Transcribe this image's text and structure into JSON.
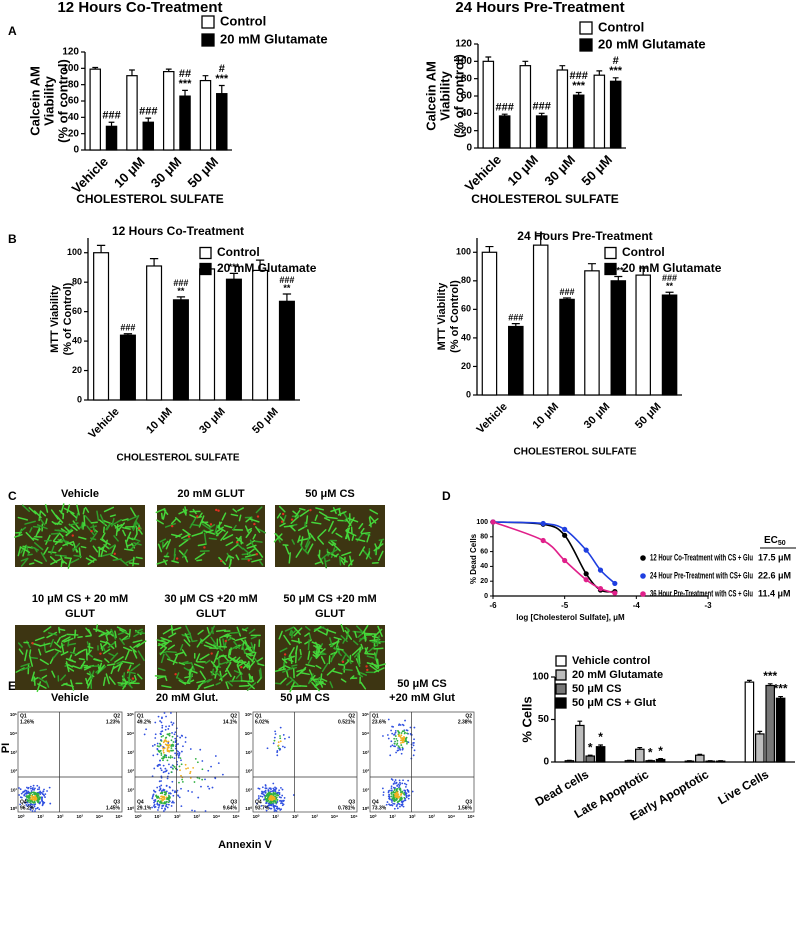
{
  "chart_data": [
    {
      "type": "bar",
      "panel_label": "A",
      "title": "12 Hours Co-Treatment",
      "ylabel": [
        "Calcein AM",
        "Viability",
        "(% of control)"
      ],
      "xlabel": "CHOLESTEROL SULFATE",
      "categories": [
        "Vehicle",
        "10 μM",
        "30 μM",
        "50 μM"
      ],
      "ylim": [
        0,
        120
      ],
      "yticks": [
        0,
        20,
        40,
        60,
        80,
        100,
        120
      ],
      "series": [
        {
          "name": "Control",
          "color": "#ffffff",
          "values": [
            99,
            91,
            96,
            85
          ],
          "errors": [
            2,
            7,
            3,
            6
          ]
        },
        {
          "name": "20 mM Glutamate",
          "color": "#000000",
          "values": [
            29,
            34,
            66,
            69
          ],
          "errors": [
            5,
            5,
            7,
            10
          ],
          "annotations": [
            [
              "###"
            ],
            [
              "###"
            ],
            [
              "##",
              "***"
            ],
            [
              "#",
              "***"
            ]
          ]
        }
      ]
    },
    {
      "type": "bar",
      "title": "24 Hours Pre-Treatment",
      "ylabel": [
        "Calcein AM",
        "Viability",
        "(% of control)"
      ],
      "xlabel": "CHOLESTEROL SULFATE",
      "categories": [
        "Vehicle",
        "10 μM",
        "30 μM",
        "50 μM"
      ],
      "ylim": [
        0,
        120
      ],
      "yticks": [
        0,
        20,
        40,
        60,
        80,
        100,
        120
      ],
      "series": [
        {
          "name": "Control",
          "color": "#ffffff",
          "values": [
            100,
            95,
            90,
            84
          ],
          "errors": [
            5,
            5,
            5,
            5
          ]
        },
        {
          "name": "20 mM Glutamate",
          "color": "#000000",
          "values": [
            37,
            37,
            61,
            77
          ],
          "errors": [
            2,
            3,
            3,
            4
          ],
          "annotations": [
            [
              "###"
            ],
            [
              "###"
            ],
            [
              "###",
              "***"
            ],
            [
              "#",
              "***"
            ]
          ]
        }
      ]
    },
    {
      "type": "bar",
      "panel_label": "B",
      "title": "12 Hours Co-Treatment",
      "ylabel": [
        "MTT Viability",
        "(% of Control)"
      ],
      "xlabel": "CHOLESTEROL SULFATE",
      "categories": [
        "Vehicle",
        "10 μM",
        "30 μM",
        "50 μM"
      ],
      "ylim": [
        0,
        110
      ],
      "yticks": [
        0,
        20,
        40,
        60,
        80,
        100
      ],
      "series": [
        {
          "name": "Control",
          "color": "#ffffff",
          "values": [
            100,
            91,
            89,
            88
          ],
          "errors": [
            5,
            5,
            2,
            7
          ]
        },
        {
          "name": "20 mM Glutamate",
          "color": "#000000",
          "values": [
            44,
            68,
            82,
            67
          ],
          "errors": [
            1,
            2,
            4,
            5
          ],
          "annotations": [
            [
              "###"
            ],
            [
              "###",
              "**"
            ],
            [
              "***"
            ],
            [
              "###",
              "**"
            ]
          ]
        }
      ]
    },
    {
      "type": "bar",
      "title": "24 Hours Pre-Treatment",
      "ylabel": [
        "MTT Viability",
        "(% of Control)"
      ],
      "xlabel": "CHOLESTEROL SULFATE",
      "categories": [
        "Vehicle",
        "10 μM",
        "30 μM",
        "50 μM"
      ],
      "ylim": [
        0,
        110
      ],
      "yticks": [
        0,
        20,
        40,
        60,
        80,
        100
      ],
      "series": [
        {
          "name": "Control",
          "color": "#ffffff",
          "values": [
            100,
            105,
            87,
            84
          ],
          "errors": [
            4,
            8,
            5,
            5
          ]
        },
        {
          "name": "20 mM Glutamate",
          "color": "#000000",
          "values": [
            48,
            67,
            80,
            70
          ],
          "errors": [
            2,
            1,
            3,
            2
          ],
          "annotations": [
            [
              "###"
            ],
            [
              "###"
            ],
            [
              "***"
            ],
            [
              "###",
              "**"
            ]
          ]
        }
      ]
    },
    {
      "type": "line",
      "panel_label": "D",
      "xlabel": "log [Cholesterol Sulfate], μM",
      "ylabel": "% Dead Cells",
      "xlim": [
        -6,
        -3
      ],
      "xticks": [
        -6,
        -5,
        -4,
        -3
      ],
      "ylim": [
        0,
        100
      ],
      "yticks": [
        0,
        20,
        40,
        60,
        80,
        100
      ],
      "ec50_header": "EC",
      "ec50_header_sub": "50",
      "x": [
        -6,
        -5.3,
        -5,
        -4.7,
        -4.5,
        -4.3
      ],
      "series": [
        {
          "name": "12 Hour Co-Treatment with CS + Glu",
          "color": "#000000",
          "ec50": "17.5 μM",
          "values": [
            100,
            97,
            82,
            30,
            8,
            6
          ]
        },
        {
          "name": "24 Hour Pre-Treatment with CS+ Glu",
          "color": "#1f3fe0",
          "ec50": "22.6 μM",
          "values": [
            100,
            98,
            90,
            62,
            35,
            17
          ]
        },
        {
          "name": "36 Hour Pre-Treatment with CS + Glu",
          "color": "#e0208a",
          "ec50": "11.4 μM",
          "values": [
            100,
            75,
            48,
            22,
            10,
            4
          ]
        }
      ]
    },
    {
      "type": "bar",
      "panel_label": "E",
      "ylabel": [
        "% Cells"
      ],
      "categories": [
        "Dead cells",
        "Late Apoptotic",
        "Early Apoptotic",
        "Live Cells"
      ],
      "ylim": [
        0,
        100
      ],
      "yticks": [
        0,
        50,
        100
      ],
      "series": [
        {
          "name": "Vehicle control",
          "color": "#ffffff",
          "values": [
            1.5,
            1.5,
            1,
            94
          ],
          "errors": [
            0.5,
            0.5,
            0.5,
            2
          ]
        },
        {
          "name": "20 mM Glutamate",
          "color": "#bdbdbd",
          "values": [
            43,
            15,
            8,
            33
          ],
          "errors": [
            5,
            2,
            1,
            3
          ]
        },
        {
          "name": "50 μM CS",
          "color": "#777777",
          "values": [
            7,
            1.5,
            1,
            90
          ],
          "errors": [
            1,
            0.5,
            0.5,
            2
          ],
          "annotations": [
            [
              "*"
            ],
            [
              "*"
            ],
            null,
            [
              "***"
            ]
          ]
        },
        {
          "name": "50 μM CS + Glut",
          "color": "#000000",
          "values": [
            18,
            3,
            1,
            75
          ],
          "errors": [
            2,
            1,
            0.5,
            2
          ],
          "annotations": [
            [
              "*"
            ],
            [
              "*"
            ],
            null,
            [
              "***"
            ]
          ]
        }
      ]
    }
  ],
  "figure_c": {
    "panel_label": "C",
    "images": [
      [
        "Vehicle"
      ],
      [
        "20 mM GLUT"
      ],
      [
        "50 μM CS"
      ],
      [
        "10 μM CS + 20 mM",
        "GLUT"
      ],
      [
        "30 μM CS +20 mM",
        "GLUT"
      ],
      [
        "50 μM CS +20 mM",
        "GLUT"
      ]
    ]
  },
  "flow_cytometry": {
    "ylabel": "PI",
    "xlabel": "Annexin V",
    "axis_ticks": [
      "10⁰",
      "10¹",
      "10²",
      "10³",
      "10⁴",
      "10⁵"
    ],
    "plots": [
      {
        "label": [
          "Vehicle"
        ],
        "quadrants": [
          [
            "Q1",
            "1.26%"
          ],
          [
            "Q2",
            "1.23%"
          ],
          [
            "Q3",
            "1.45%"
          ],
          [
            "Q4",
            "96.2%"
          ]
        ]
      },
      {
        "label": [
          "20 mM Glut."
        ],
        "quadrants": [
          [
            "Q1",
            "49.2%"
          ],
          [
            "Q2",
            "14.1%"
          ],
          [
            "Q3",
            "9.64%"
          ],
          [
            "Q4",
            "29.1%"
          ]
        ]
      },
      {
        "label": [
          "50 μM CS"
        ],
        "quadrants": [
          [
            "Q1",
            "6.02%"
          ],
          [
            "Q2",
            "0.521%"
          ],
          [
            "Q3",
            "0.781%"
          ],
          [
            "Q4",
            "93.7%"
          ]
        ]
      },
      {
        "label": [
          "50 μM CS",
          "+20 mM Glut"
        ],
        "quadrants": [
          [
            "Q1",
            "23.6%"
          ],
          [
            "Q2",
            "2.38%"
          ],
          [
            "Q3",
            "1.56%"
          ],
          [
            "Q4",
            "73.3%"
          ]
        ]
      }
    ]
  }
}
